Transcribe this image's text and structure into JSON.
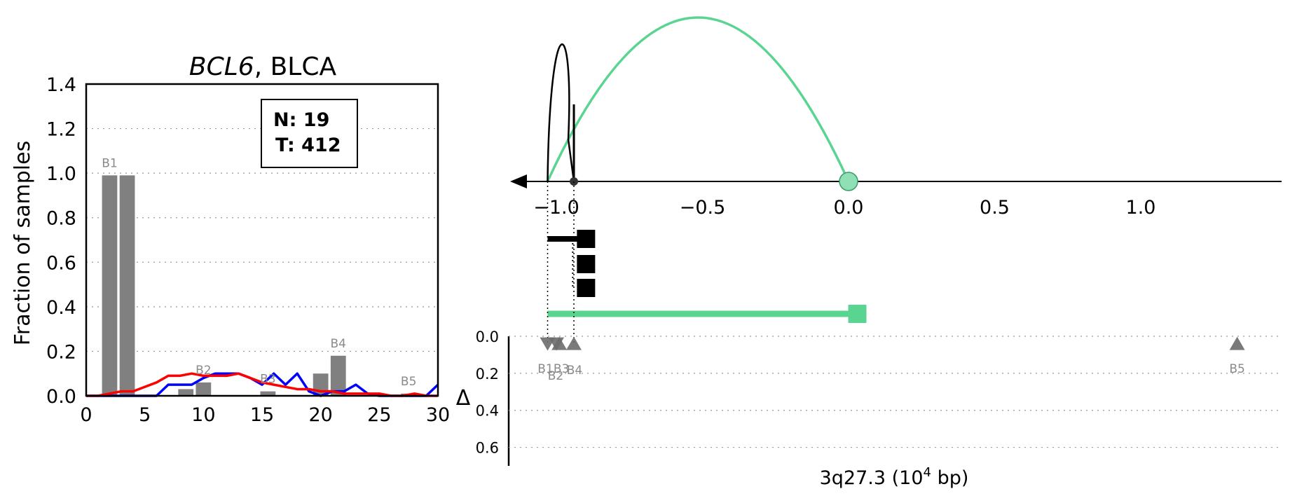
{
  "chart_data": [
    {
      "type": "bar",
      "title": "BCL6, BLCA",
      "title_gene": "BCL6",
      "title_rest": ", BLCA",
      "xlabel": "",
      "ylabel": "Fraction of samples",
      "xlim": [
        0,
        30
      ],
      "ylim": [
        0,
        1.4
      ],
      "xticks": [
        "0",
        "5",
        "10",
        "15",
        "20",
        "25",
        "30"
      ],
      "yticks": [
        "0.0",
        "0.2",
        "0.4",
        "0.6",
        "0.8",
        "1.0",
        "1.2",
        "1.4"
      ],
      "grid": true,
      "legend_box": {
        "line1": "N: 19",
        "line2": "T: 412"
      },
      "bars": [
        {
          "x": 2,
          "value": 0.99,
          "label": "B1"
        },
        {
          "x": 3.5,
          "value": 0.99,
          "label": ""
        },
        {
          "x": 8.5,
          "value": 0.03,
          "label": ""
        },
        {
          "x": 10,
          "value": 0.06,
          "label": "B2"
        },
        {
          "x": 15.5,
          "value": 0.02,
          "label": "B3"
        },
        {
          "x": 20,
          "value": 0.1,
          "label": ""
        },
        {
          "x": 21.5,
          "value": 0.18,
          "label": "B4"
        },
        {
          "x": 27.5,
          "value": 0.01,
          "label": "B5"
        }
      ],
      "series": [
        {
          "color": "#0000ff",
          "x": [
            0,
            2,
            4,
            5,
            6,
            7,
            8,
            9,
            10,
            11,
            12,
            13,
            14,
            15,
            16,
            17,
            18,
            19,
            20,
            21,
            22,
            23,
            24,
            25,
            26,
            27,
            28,
            29,
            30
          ],
          "values": [
            0,
            0,
            0,
            0,
            0,
            0.05,
            0.05,
            0.05,
            0.08,
            0.1,
            0.1,
            0.1,
            0.08,
            0.05,
            0.1,
            0.05,
            0.1,
            0.02,
            0,
            0.02,
            0.02,
            0.05,
            0.01,
            0,
            0,
            0,
            0,
            0,
            0.05
          ]
        },
        {
          "color": "#ff0000",
          "x": [
            0,
            1,
            2,
            3,
            4,
            5,
            6,
            7,
            8,
            9,
            10,
            11,
            12,
            13,
            14,
            15,
            16,
            17,
            18,
            19,
            20,
            21,
            22,
            23,
            24,
            25,
            26,
            27,
            28,
            29,
            30
          ],
          "values": [
            0,
            0,
            0.01,
            0.02,
            0.02,
            0.04,
            0.06,
            0.09,
            0.09,
            0.1,
            0.09,
            0.09,
            0.09,
            0.1,
            0.08,
            0.06,
            0.05,
            0.04,
            0.03,
            0.03,
            0.02,
            0.02,
            0.01,
            0.01,
            0.01,
            0.01,
            0,
            0,
            0.01,
            0,
            0
          ]
        }
      ]
    },
    {
      "type": "line",
      "xlabel": "3q27.3 (10^4 bp)",
      "xlabel_main": "3q27.3 (10",
      "xlabel_sup": "4",
      "xlabel_tail": " bp)",
      "xlim": [
        -1.2,
        1.5
      ],
      "xticks": [
        "−1.0",
        "−0.5",
        "0.0",
        "0.5",
        "1.0"
      ],
      "tick_values": [
        -1.0,
        -0.5,
        0.0,
        0.5,
        1.0
      ],
      "green_color": "#5ad591",
      "arcs": [
        {
          "start": -1.03,
          "end": 0.0,
          "height": 1.0,
          "color": "#5ad591"
        },
        {
          "start": -1.03,
          "end": -0.94,
          "height": 0.75,
          "color": "#000000"
        }
      ],
      "gene_segments": [
        {
          "start": -1.03,
          "end": -0.92,
          "color": "#000000"
        },
        {
          "start": -0.93,
          "end": -0.92,
          "color": "#000000"
        },
        {
          "start": -0.93,
          "end": -0.92,
          "color": "#000000"
        },
        {
          "start": -1.03,
          "end": 0.03,
          "color": "#5ad591"
        }
      ],
      "delta_ylabel": "Δ",
      "delta_yticks": [
        "0.0",
        "0.2",
        "0.4",
        "0.6"
      ],
      "delta_ylim": [
        0,
        0.7
      ],
      "breakpoints": [
        {
          "x": -1.03,
          "delta": 0.04,
          "label": "B1",
          "direction": "down"
        },
        {
          "x": -1.0,
          "delta": 0.04,
          "label": "B2",
          "direction": "down"
        },
        {
          "x": -0.99,
          "delta": 0.04,
          "label": "B3",
          "direction": "up"
        },
        {
          "x": -0.94,
          "delta": 0.04,
          "label": "B4",
          "direction": "up"
        },
        {
          "x": 1.33,
          "delta": 0.04,
          "label": "B5",
          "direction": "up"
        }
      ]
    }
  ]
}
